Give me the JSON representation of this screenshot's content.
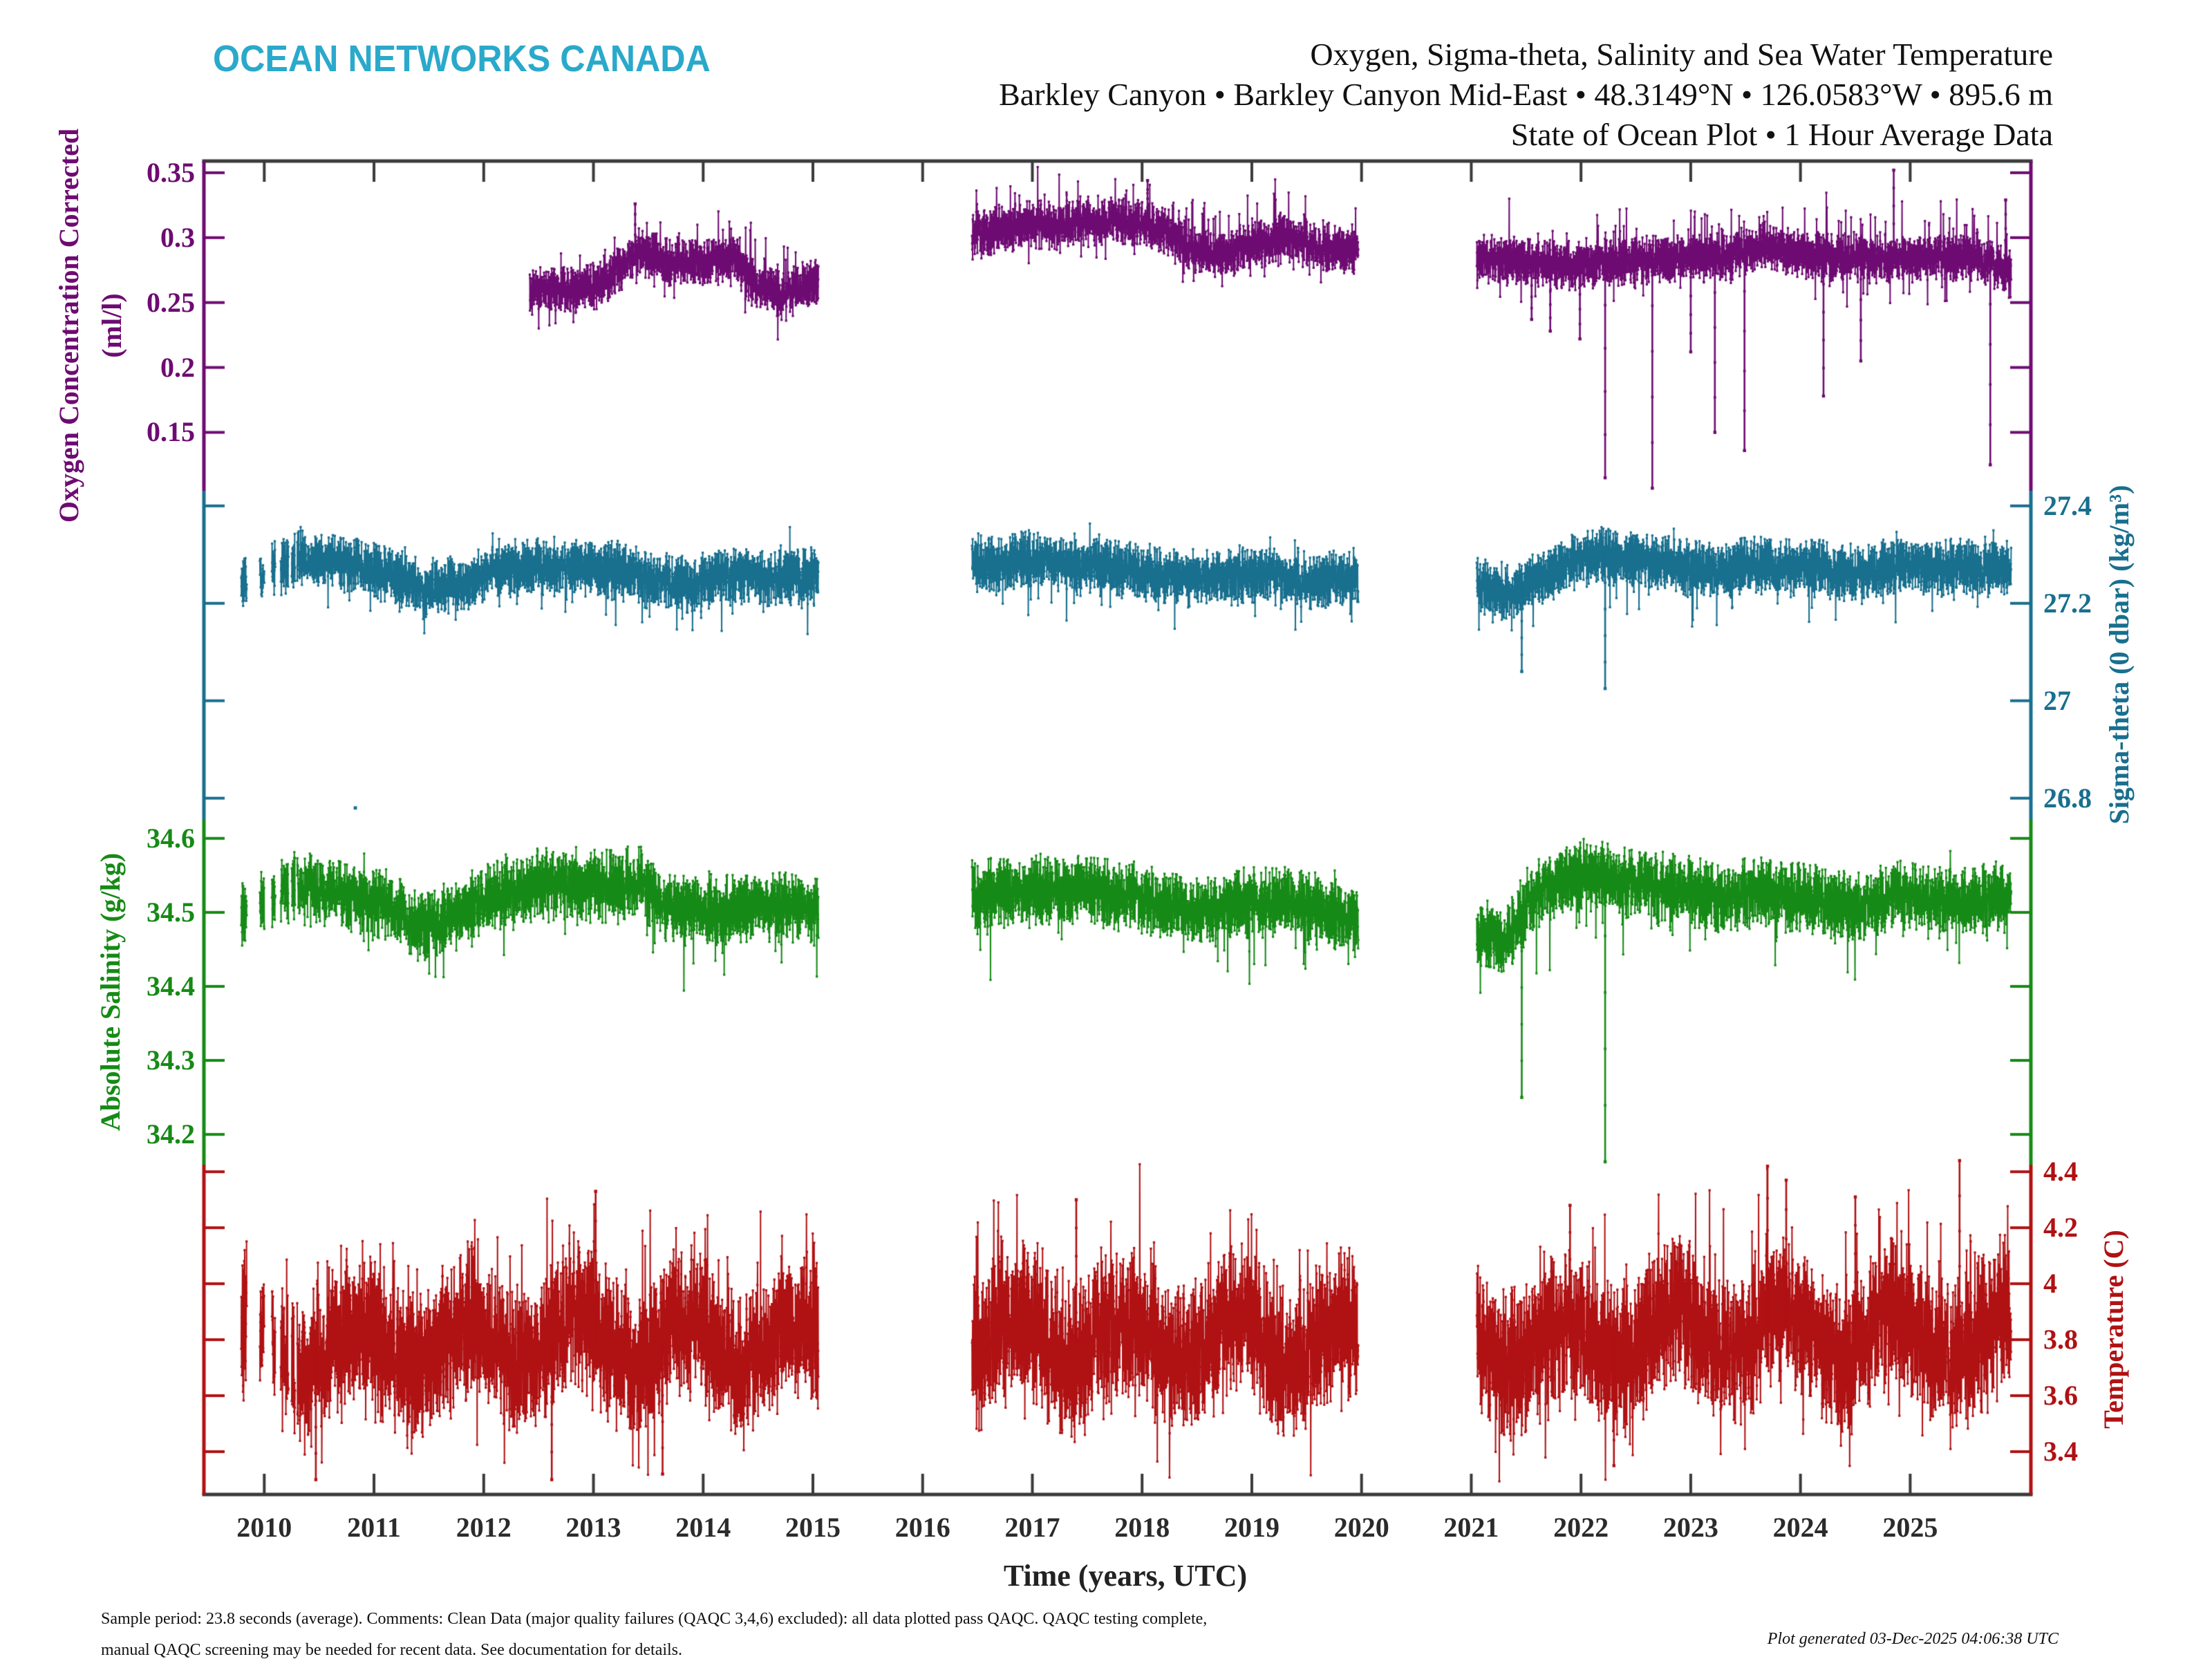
{
  "logo_text": "OCEAN NETWORKS CANADA",
  "title": {
    "line1": "Oxygen, Sigma-theta, Salinity and Sea Water Temperature",
    "line2": "Barkley Canyon • Barkley Canyon Mid-East • 48.3149°N • 126.0583°W • 895.6 m",
    "line3": "State of Ocean Plot • 1 Hour Average Data"
  },
  "footer": {
    "line1": "Sample period: 23.8 seconds (average). Comments: Clean Data (major quality failures (QAQC 3,4,6) excluded): all data plotted pass QAQC. QAQC testing complete,",
    "line2": "manual QAQC screening may be needed for recent data. See documentation for details.",
    "generated": "Plot generated 03-Dec-2025 04:06:38 UTC"
  },
  "chart_data": {
    "type": "scatter",
    "description": "State of Ocean stacked time-series, 1 hour average data, four variables on one time axis",
    "x_axis": {
      "label": "Time (years, UTC)",
      "tick_labels": [
        "2010",
        "2011",
        "2012",
        "2013",
        "2014",
        "2015",
        "2016",
        "2017",
        "2018",
        "2019",
        "2020",
        "2021",
        "2022",
        "2023",
        "2024",
        "2025"
      ],
      "tick_values": [
        2010,
        2011,
        2012,
        2013,
        2014,
        2015,
        2016,
        2017,
        2018,
        2019,
        2020,
        2021,
        2022,
        2023,
        2024,
        2025
      ],
      "range": [
        2009.45,
        2026.1
      ],
      "data_gaps": [
        [
          2015.05,
          2016.45
        ],
        [
          2019.97,
          2021.05
        ]
      ]
    },
    "frame_color": "#3A3A3A",
    "series": [
      {
        "id": "oxygen",
        "axis_label": "Oxygen Concentration Corrected",
        "axis_label2": "(ml/l)",
        "label_side": "left",
        "color": "#6E0B72",
        "seed": 11,
        "axis": {
          "tick_values": [
            0.35,
            0.3,
            0.25,
            0.2,
            0.15
          ],
          "tick_labels": [
            "0.35",
            "0.3",
            "0.25",
            "0.2",
            "0.15"
          ],
          "value_range": [
            0.359,
            0.105
          ]
        },
        "segments": [
          [
            2012.42,
            2015.05
          ],
          [
            2016.45,
            2019.97
          ],
          [
            2021.05,
            2025.92
          ]
        ],
        "mean": [
          [
            2012.42,
            0.258
          ],
          [
            2012.8,
            0.259
          ],
          [
            2013.1,
            0.265
          ],
          [
            2013.3,
            0.283
          ],
          [
            2013.45,
            0.289
          ],
          [
            2013.7,
            0.281
          ],
          [
            2014.0,
            0.281
          ],
          [
            2014.3,
            0.284
          ],
          [
            2014.45,
            0.266
          ],
          [
            2014.7,
            0.254
          ],
          [
            2014.9,
            0.262
          ],
          [
            2015.05,
            0.267
          ],
          [
            2016.45,
            0.304
          ],
          [
            2017.0,
            0.309
          ],
          [
            2017.5,
            0.311
          ],
          [
            2017.95,
            0.312
          ],
          [
            2018.25,
            0.303
          ],
          [
            2018.5,
            0.289
          ],
          [
            2018.75,
            0.286
          ],
          [
            2019.05,
            0.295
          ],
          [
            2019.35,
            0.299
          ],
          [
            2019.65,
            0.291
          ],
          [
            2019.97,
            0.289
          ],
          [
            2021.05,
            0.285
          ],
          [
            2021.5,
            0.281
          ],
          [
            2021.85,
            0.278
          ],
          [
            2022.3,
            0.282
          ],
          [
            2022.8,
            0.283
          ],
          [
            2023.3,
            0.285
          ],
          [
            2023.65,
            0.293
          ],
          [
            2023.95,
            0.288
          ],
          [
            2024.4,
            0.284
          ],
          [
            2024.9,
            0.283
          ],
          [
            2025.3,
            0.284
          ],
          [
            2025.6,
            0.285
          ],
          [
            2025.92,
            0.272
          ]
        ],
        "noise": {
          "hw": 0.01,
          "up_p": 0.05,
          "up_max": 0.032,
          "dn_p": 0.03,
          "dn_max": 0.024
        },
        "spikes_down": [
          [
            2021.55,
            0.237
          ],
          [
            2021.72,
            0.228
          ],
          [
            2021.99,
            0.222
          ],
          [
            2022.22,
            0.115
          ],
          [
            2022.65,
            0.107
          ],
          [
            2023.0,
            0.212
          ],
          [
            2023.22,
            0.15
          ],
          [
            2023.49,
            0.136
          ],
          [
            2024.21,
            0.178
          ],
          [
            2024.55,
            0.205
          ],
          [
            2025.73,
            0.125
          ]
        ],
        "spikes_up": [
          [
            2013.38,
            0.326
          ],
          [
            2018.05,
            0.344
          ],
          [
            2024.85,
            0.352
          ],
          [
            2025.87,
            0.329
          ]
        ]
      },
      {
        "id": "sigma_theta",
        "axis_label": "Sigma-theta (0 dbar) (kg/m³)",
        "label_side": "right",
        "color": "#186F8E",
        "seed": 23,
        "axis": {
          "tick_values": [
            27.4,
            27.2,
            27.0,
            26.8
          ],
          "tick_labels": [
            "27.4",
            "27.2",
            "27",
            "26.8"
          ],
          "value_range": [
            27.431,
            26.757
          ]
        },
        "segments": [
          [
            2010.3,
            2015.05
          ],
          [
            2016.45,
            2019.97
          ],
          [
            2021.05,
            2025.92
          ]
        ],
        "intro_clusters": [
          [
            2009.79,
            2009.84
          ],
          [
            2009.96,
            2010.0
          ],
          [
            2010.07,
            2010.1
          ],
          [
            2010.15,
            2010.22
          ],
          [
            2010.25,
            2010.28
          ]
        ],
        "mean": [
          [
            2009.79,
            27.24
          ],
          [
            2010.3,
            27.295
          ],
          [
            2010.7,
            27.285
          ],
          [
            2011.0,
            27.27
          ],
          [
            2011.45,
            27.23
          ],
          [
            2011.8,
            27.24
          ],
          [
            2012.2,
            27.27
          ],
          [
            2012.7,
            27.28
          ],
          [
            2013.1,
            27.27
          ],
          [
            2013.5,
            27.25
          ],
          [
            2013.9,
            27.24
          ],
          [
            2014.3,
            27.26
          ],
          [
            2014.7,
            27.25
          ],
          [
            2015.05,
            27.26
          ],
          [
            2016.45,
            27.28
          ],
          [
            2017.0,
            27.29
          ],
          [
            2017.6,
            27.28
          ],
          [
            2018.1,
            27.26
          ],
          [
            2018.6,
            27.25
          ],
          [
            2019.1,
            27.26
          ],
          [
            2019.5,
            27.25
          ],
          [
            2019.97,
            27.25
          ],
          [
            2021.05,
            27.24
          ],
          [
            2021.35,
            27.22
          ],
          [
            2021.7,
            27.26
          ],
          [
            2022.1,
            27.3
          ],
          [
            2022.5,
            27.29
          ],
          [
            2022.9,
            27.28
          ],
          [
            2023.3,
            27.27
          ],
          [
            2023.7,
            27.28
          ],
          [
            2024.1,
            27.27
          ],
          [
            2024.5,
            27.26
          ],
          [
            2024.9,
            27.28
          ],
          [
            2025.3,
            27.27
          ],
          [
            2025.92,
            27.28
          ]
        ],
        "noise": {
          "hw": 0.032,
          "up_p": 0.012,
          "up_max": 0.05,
          "dn_p": 0.025,
          "dn_max": 0.09
        },
        "spikes_down": [
          [
            2021.46,
            27.06
          ],
          [
            2022.22,
            27.025
          ]
        ],
        "outliers": [
          [
            2010.83,
            26.78
          ]
        ]
      },
      {
        "id": "salinity",
        "axis_label": "Absolute Salinity (g/kg)",
        "label_side": "left",
        "color": "#168A16",
        "seed": 37,
        "axis": {
          "tick_values": [
            34.6,
            34.5,
            34.4,
            34.3,
            34.2
          ],
          "tick_labels": [
            "34.6",
            "34.5",
            "34.4",
            "34.3",
            "34.2"
          ],
          "value_range": [
            34.626,
            34.159
          ]
        },
        "segments": [
          [
            2010.3,
            2015.05
          ],
          [
            2016.45,
            2019.97
          ],
          [
            2021.05,
            2025.92
          ]
        ],
        "intro_clusters": [
          [
            2009.79,
            2009.84
          ],
          [
            2009.96,
            2010.0
          ],
          [
            2010.07,
            2010.1
          ],
          [
            2010.15,
            2010.22
          ],
          [
            2010.25,
            2010.28
          ]
        ],
        "mean": [
          [
            2009.79,
            34.5
          ],
          [
            2010.3,
            34.535
          ],
          [
            2010.7,
            34.525
          ],
          [
            2011.0,
            34.515
          ],
          [
            2011.45,
            34.48
          ],
          [
            2011.8,
            34.5
          ],
          [
            2012.2,
            34.53
          ],
          [
            2012.7,
            34.54
          ],
          [
            2013.1,
            34.535
          ],
          [
            2013.45,
            34.54
          ],
          [
            2013.65,
            34.505
          ],
          [
            2014.1,
            34.5
          ],
          [
            2014.5,
            34.51
          ],
          [
            2015.05,
            34.505
          ],
          [
            2016.45,
            34.52
          ],
          [
            2017.0,
            34.53
          ],
          [
            2017.6,
            34.53
          ],
          [
            2018.1,
            34.515
          ],
          [
            2018.5,
            34.5
          ],
          [
            2018.9,
            34.51
          ],
          [
            2019.3,
            34.515
          ],
          [
            2019.7,
            34.5
          ],
          [
            2019.97,
            34.49
          ],
          [
            2021.05,
            34.475
          ],
          [
            2021.3,
            34.46
          ],
          [
            2021.6,
            34.53
          ],
          [
            2022.0,
            34.55
          ],
          [
            2022.4,
            34.54
          ],
          [
            2022.9,
            34.53
          ],
          [
            2023.3,
            34.52
          ],
          [
            2023.7,
            34.53
          ],
          [
            2024.1,
            34.515
          ],
          [
            2024.5,
            34.505
          ],
          [
            2024.9,
            34.525
          ],
          [
            2025.3,
            34.515
          ],
          [
            2025.92,
            34.52
          ]
        ],
        "noise": {
          "hw": 0.026,
          "up_p": 0.012,
          "up_max": 0.04,
          "dn_p": 0.025,
          "dn_max": 0.075
        },
        "spikes_down": [
          [
            2021.46,
            34.25
          ],
          [
            2022.22,
            34.163
          ]
        ]
      },
      {
        "id": "temperature",
        "axis_label": "Temperature (C)",
        "label_side": "right",
        "color": "#B01113",
        "seed": 51,
        "axis": {
          "tick_values": [
            4.4,
            4.2,
            4.0,
            3.8,
            3.6,
            3.4
          ],
          "tick_labels": [
            "4.4",
            "4.2",
            "4",
            "3.8",
            "3.6",
            "3.4"
          ],
          "value_range": [
            4.425,
            3.247
          ]
        },
        "segments": [
          [
            2010.3,
            2015.05
          ],
          [
            2016.45,
            2019.97
          ],
          [
            2021.05,
            2025.92
          ]
        ],
        "intro_clusters": [
          [
            2009.79,
            2009.84
          ],
          [
            2009.96,
            2010.0
          ],
          [
            2010.07,
            2010.1
          ],
          [
            2010.15,
            2010.22
          ],
          [
            2010.25,
            2010.28
          ]
        ],
        "mean": [
          [
            2009.79,
            3.75
          ],
          [
            2010.5,
            3.77
          ],
          [
            2011.0,
            3.78
          ],
          [
            2012.0,
            3.78
          ],
          [
            2013.0,
            3.8
          ],
          [
            2014.0,
            3.78
          ],
          [
            2015.05,
            3.77
          ],
          [
            2016.45,
            3.78
          ],
          [
            2017.0,
            3.8
          ],
          [
            2018.0,
            3.79
          ],
          [
            2019.0,
            3.8
          ],
          [
            2019.97,
            3.78
          ],
          [
            2021.05,
            3.78
          ],
          [
            2022.0,
            3.8
          ],
          [
            2023.0,
            3.82
          ],
          [
            2023.8,
            3.85
          ],
          [
            2024.4,
            3.8
          ],
          [
            2025.0,
            3.82
          ],
          [
            2025.92,
            3.8
          ]
        ],
        "seasonal": {
          "amp": 0.08,
          "peak": 0.85
        },
        "noise": {
          "hw": 0.15,
          "up_p": 0.05,
          "up_max": 0.33,
          "dn_p": 0.035,
          "dn_max": 0.26
        },
        "spikes_up": [
          [
            2013.02,
            4.33
          ],
          [
            2017.4,
            4.3
          ],
          [
            2021.9,
            4.28
          ],
          [
            2023.7,
            4.42
          ],
          [
            2023.87,
            4.37
          ],
          [
            2024.5,
            4.31
          ],
          [
            2025.45,
            4.44
          ]
        ],
        "spikes_down": [
          [
            2010.47,
            3.3
          ],
          [
            2012.62,
            3.3
          ],
          [
            2013.63,
            3.32
          ],
          [
            2022.3,
            3.35
          ]
        ]
      }
    ]
  }
}
